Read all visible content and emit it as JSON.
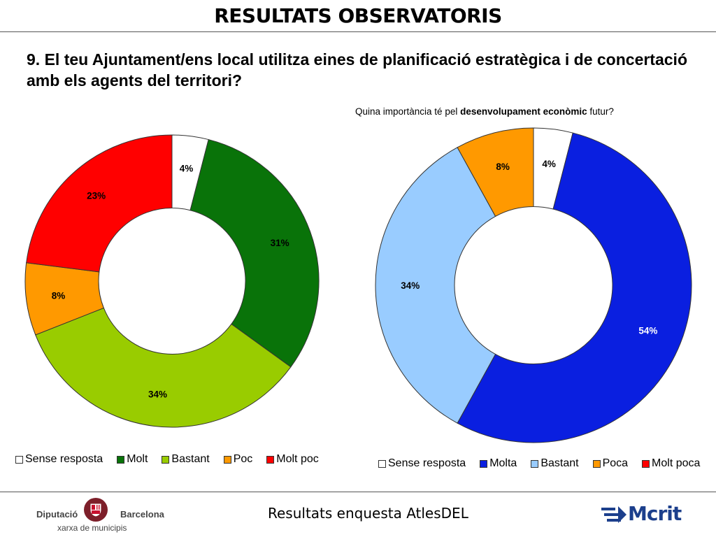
{
  "header": {
    "title": "RESULTATS OBSERVATORIS"
  },
  "question": "9. El teu Ajuntament/ens local utilitza eines de planificació estratègica i de concertació amb els agents del territori?",
  "right_subtitle": {
    "pre": "Quina importància té pel ",
    "bold": "desenvolupament econòmic",
    "post": " futur?"
  },
  "chart_data": [
    {
      "type": "pie",
      "donut": true,
      "categories": [
        "Sense resposta",
        "Molt",
        "Bastant",
        "Poc",
        "Molt poc"
      ],
      "values": [
        4,
        31,
        34,
        8,
        23
      ],
      "labels": [
        "4%",
        "31%",
        "34%",
        "8%",
        "23%"
      ],
      "colors": [
        "#ffffff",
        "#097309",
        "#99cc00",
        "#ff9900",
        "#ff0000"
      ],
      "label_colors": [
        "#000000",
        "#000000",
        "#000000",
        "#000000",
        "#000000"
      ],
      "legend_position": "bottom"
    },
    {
      "type": "pie",
      "donut": true,
      "categories": [
        "Sense resposta",
        "Molta",
        "Bastant",
        "Poca",
        "Molt poca"
      ],
      "values": [
        4,
        54,
        34,
        8,
        0
      ],
      "labels": [
        "4%",
        "54%",
        "34%",
        "8%",
        ""
      ],
      "colors": [
        "#ffffff",
        "#0a1fe0",
        "#99ccff",
        "#ff9900",
        "#ff0000"
      ],
      "label_colors": [
        "#000000",
        "#ffffff",
        "#000000",
        "#000000",
        "#000000"
      ],
      "legend_position": "bottom"
    }
  ],
  "footer": {
    "text": "Resultats enquesta AtlesDEL",
    "left_logo": {
      "word1": "Diputació",
      "word2": "Barcelona",
      "subtitle": "xarxa de municipis",
      "icon": "shield-icon"
    },
    "right_logo": {
      "text": "Mcrit",
      "icon": "mcrit-arrow-icon"
    }
  }
}
